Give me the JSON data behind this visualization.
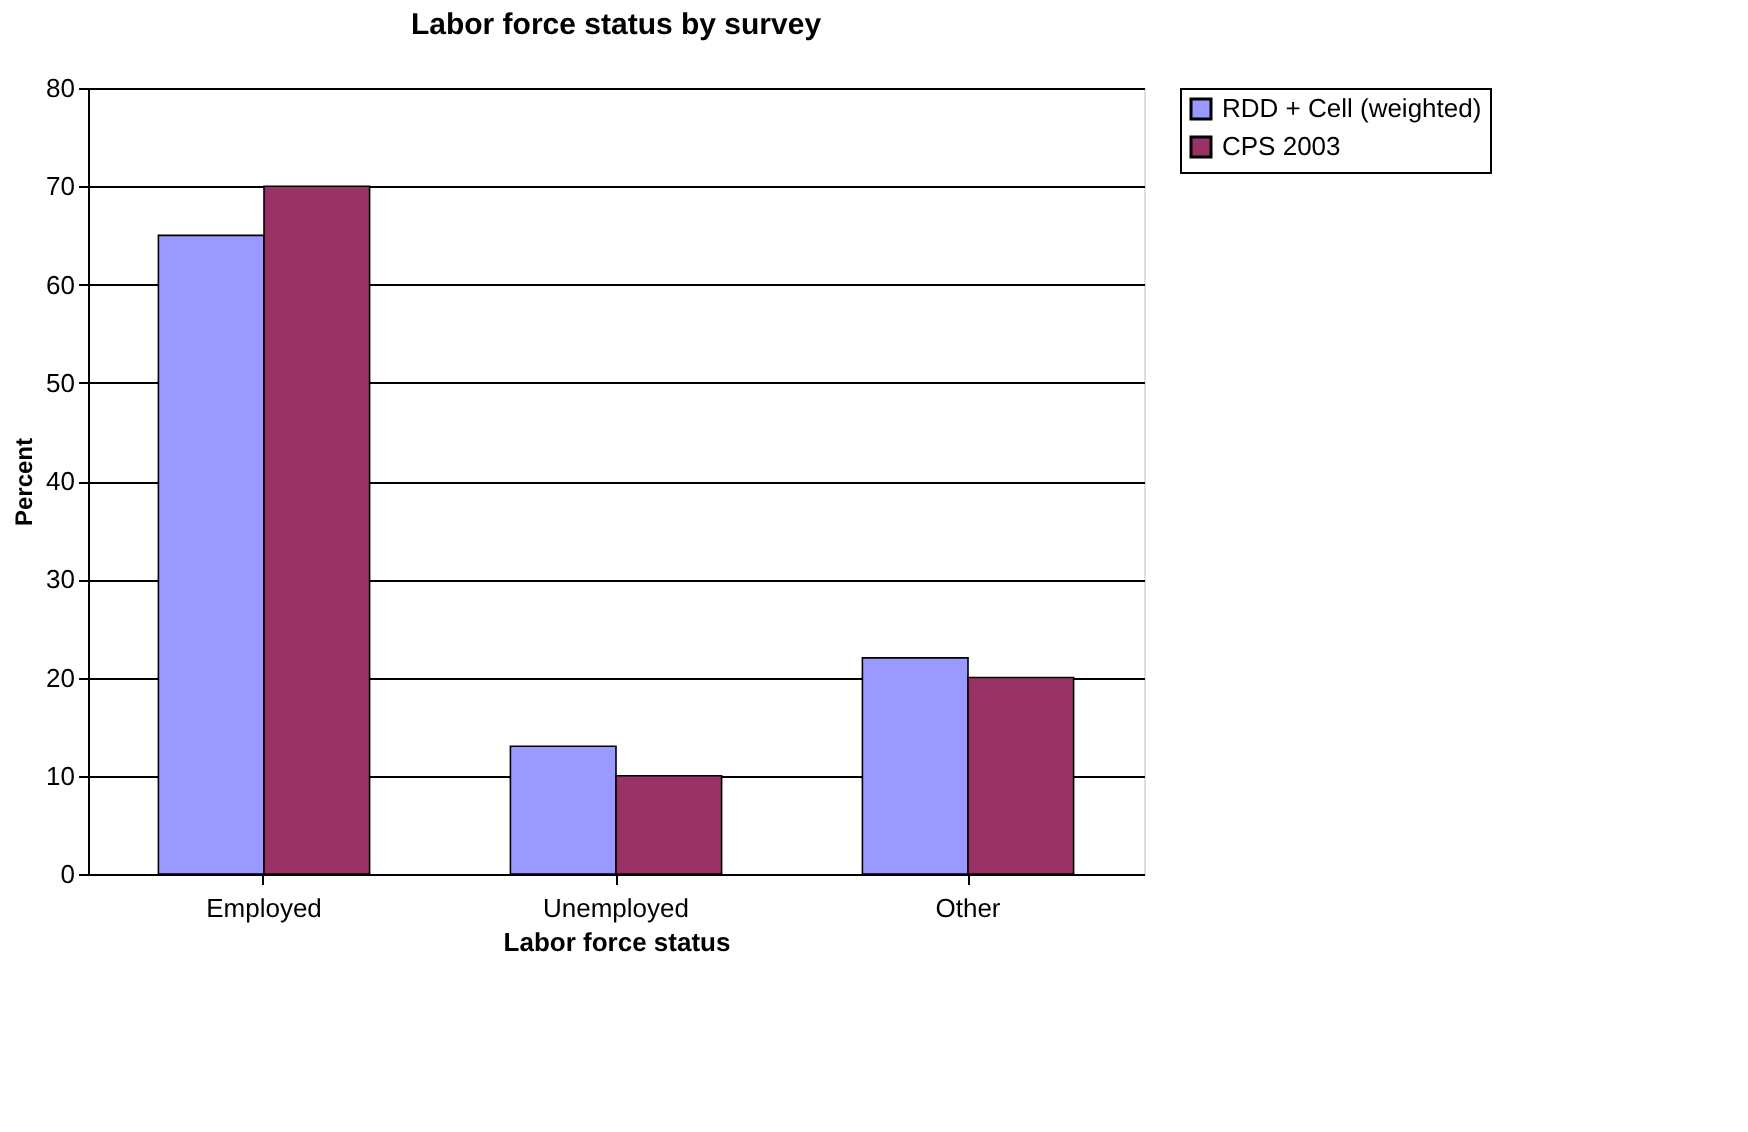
{
  "chart_data": {
    "type": "bar",
    "title": "Labor force status by survey",
    "xlabel": "Labor force status",
    "ylabel": "Percent",
    "categories": [
      "Employed",
      "Unemployed",
      "Other"
    ],
    "series": [
      {
        "name": "RDD + Cell (weighted)",
        "color": "#9999ff",
        "values": [
          65,
          13,
          22
        ]
      },
      {
        "name": "CPS 2003",
        "color": "#993366",
        "values": [
          70,
          10,
          20
        ]
      }
    ],
    "ylim": [
      0,
      80
    ],
    "yticks": [
      0,
      10,
      20,
      30,
      40,
      50,
      60,
      70,
      80
    ],
    "grid": "y",
    "legend": "right"
  }
}
